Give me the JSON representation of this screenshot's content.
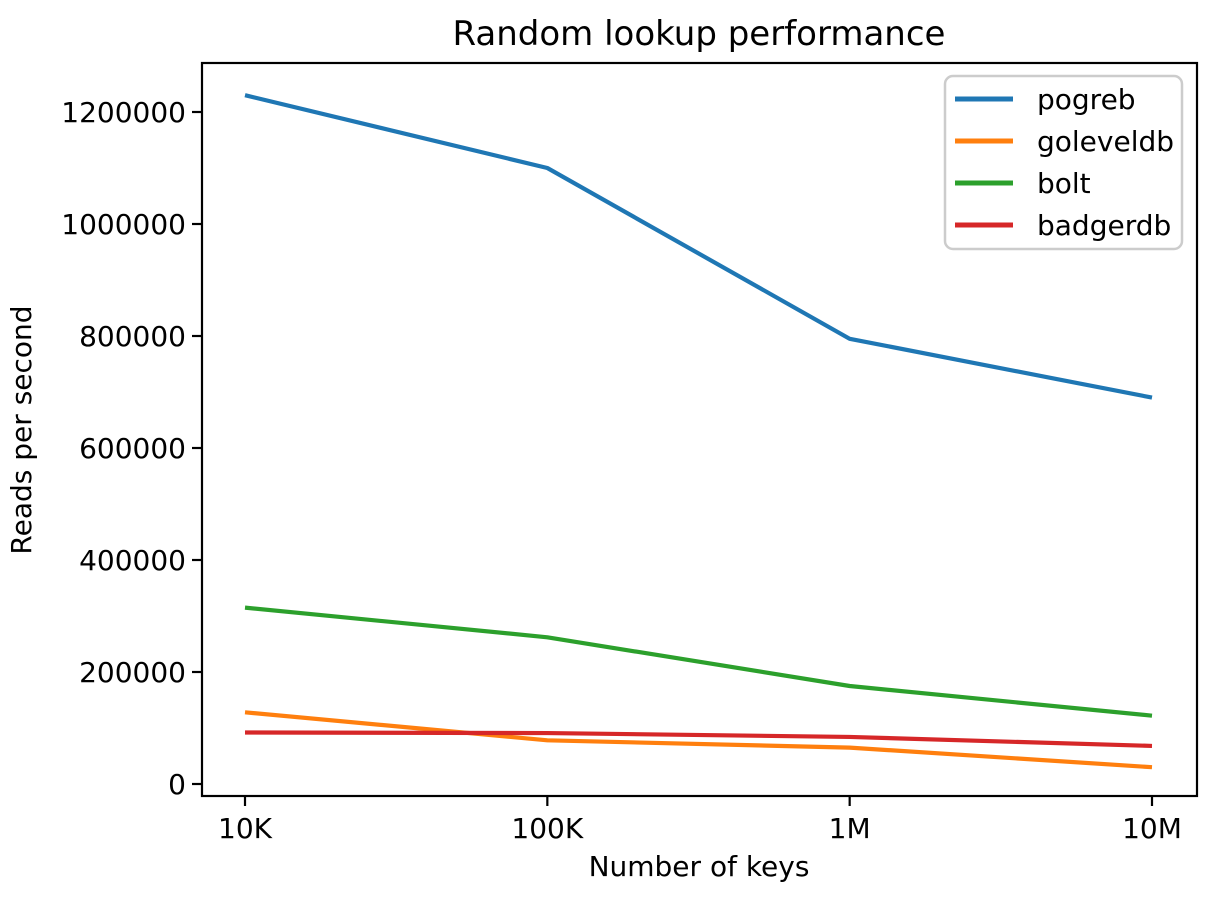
{
  "chart_data": {
    "type": "line",
    "title": "Random lookup performance",
    "xlabel": "Number of keys",
    "ylabel": "Reads per second",
    "x_scale": "log",
    "x": [
      10000,
      100000,
      1000000,
      10000000
    ],
    "categories": [
      "10K",
      "100K",
      "1M",
      "10M"
    ],
    "series": [
      {
        "name": "pogreb",
        "color": "#1f77b4",
        "values": [
          1230000,
          1100000,
          795000,
          690000
        ]
      },
      {
        "name": "goleveldb",
        "color": "#ff7f0e",
        "values": [
          128000,
          78000,
          65000,
          30000
        ]
      },
      {
        "name": "bolt",
        "color": "#2ca02c",
        "values": [
          315000,
          262000,
          175000,
          122000
        ]
      },
      {
        "name": "badgerdb",
        "color": "#d62728",
        "values": [
          92000,
          91000,
          84000,
          68000
        ]
      }
    ],
    "yticks": [
      0,
      200000,
      400000,
      600000,
      800000,
      1000000,
      1200000
    ],
    "ytick_labels": [
      "0",
      "200000",
      "400000",
      "600000",
      "800000",
      "1000000",
      "1200000"
    ],
    "ylim": [
      -30000,
      1290000
    ],
    "xlim_log10": [
      3.85,
      7.15
    ],
    "grid": false,
    "legend_position": "upper right",
    "colors": {
      "spine": "#000000",
      "text": "#000000",
      "legend_border": "#cccccc",
      "legend_bg": "#ffffff",
      "background": "#ffffff"
    }
  }
}
